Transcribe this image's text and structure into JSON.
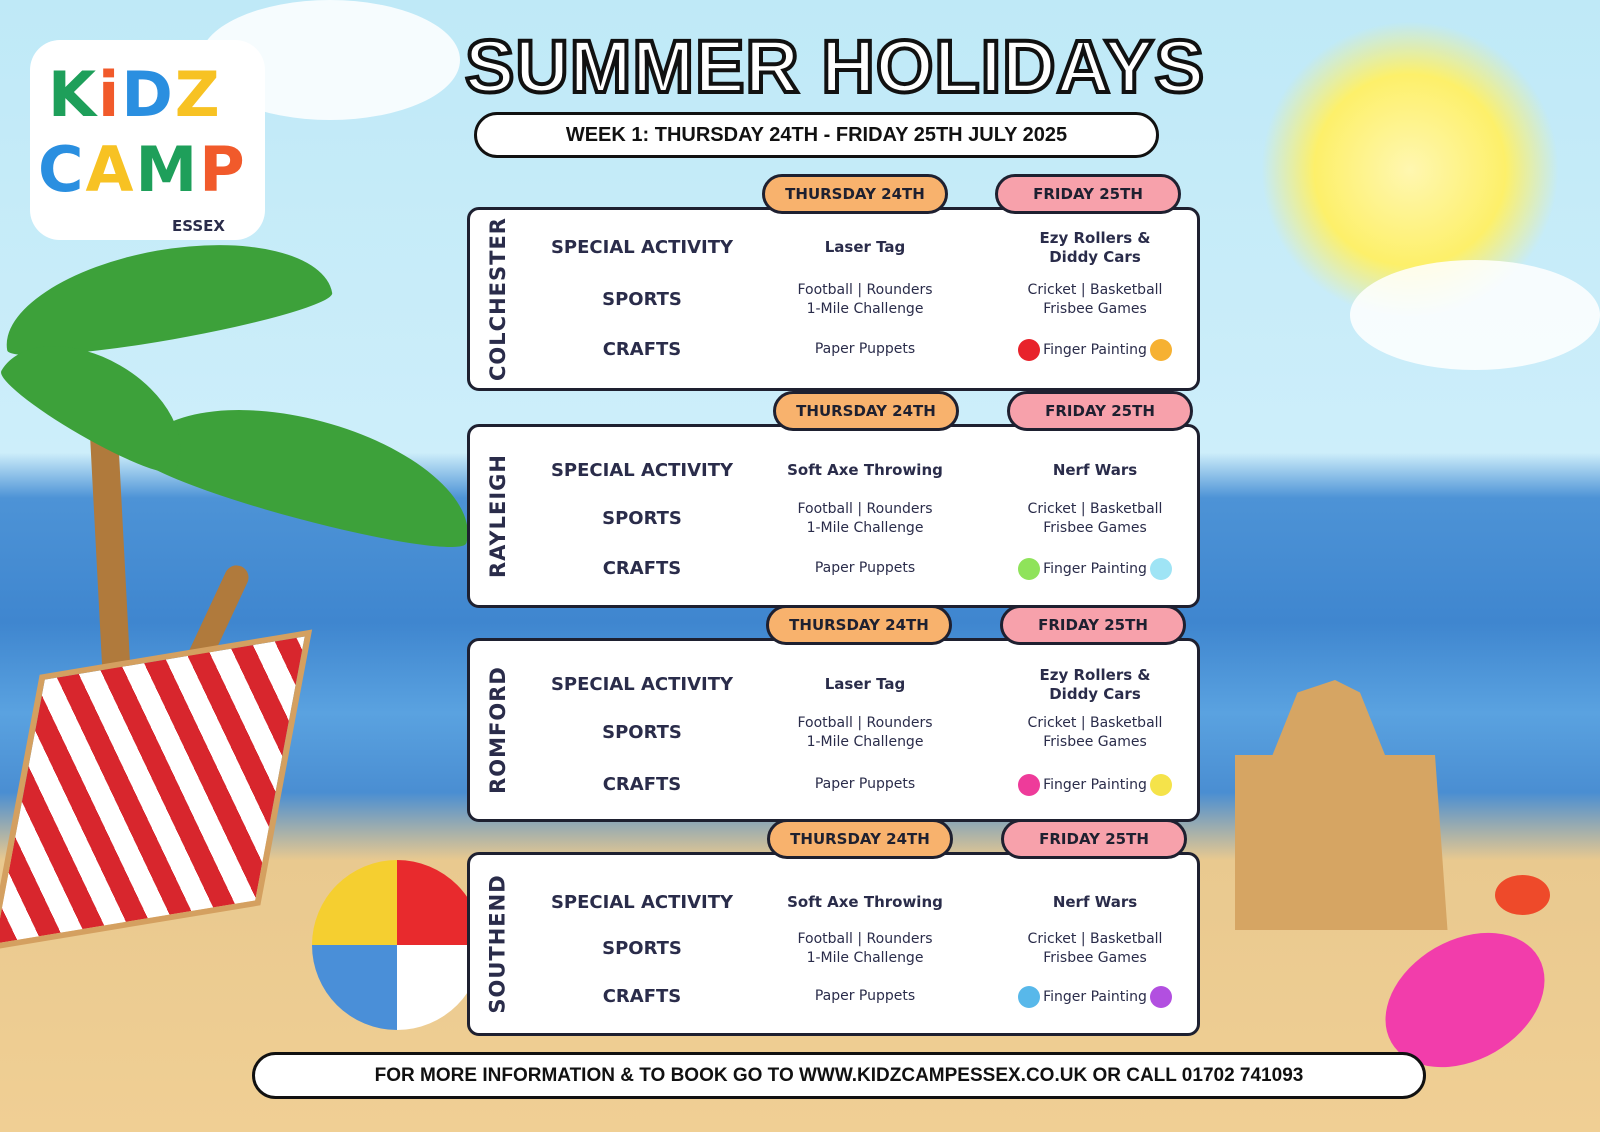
{
  "logo": {
    "line1": "KiDZ",
    "line2": "CAMP",
    "tagline": "ESSEX"
  },
  "title": "SUMMER HOLIDAYS",
  "subtitle": "WEEK 1: THURSDAY 24TH - FRIDAY 25TH JULY 2025",
  "row_labels": [
    "SPECIAL ACTIVITY",
    "SPORTS",
    "CRAFTS"
  ],
  "day_labels": {
    "thursday": "THURSDAY 24TH",
    "friday": "FRIDAY 25TH"
  },
  "colors": {
    "thursday_tab": "#f8b26d",
    "friday_tab": "#f7a1ab",
    "text": "#2a2c4a"
  },
  "locations": [
    {
      "name": "COLCHESTER",
      "thursday": [
        "Laser Tag",
        "Football | Rounders\n1-Mile Challenge",
        "Paper Puppets"
      ],
      "friday": [
        "Ezy Rollers &\nDiddy Cars",
        "Cricket | Basketball\nFrisbee Games",
        "Finger Painting"
      ],
      "splats": [
        "#e8222b",
        "#f6b132"
      ]
    },
    {
      "name": "RAYLEIGH",
      "thursday": [
        "Soft Axe Throwing",
        "Football | Rounders\n1-Mile Challenge",
        "Paper Puppets"
      ],
      "friday": [
        "Nerf Wars",
        "Cricket | Basketball\nFrisbee Games",
        "Finger Painting"
      ],
      "splats": [
        "#8fe35a",
        "#9fe4f5"
      ]
    },
    {
      "name": "ROMFORD",
      "thursday": [
        "Laser Tag",
        "Football | Rounders\n1-Mile Challenge",
        "Paper Puppets"
      ],
      "friday": [
        "Ezy Rollers &\nDiddy Cars",
        "Cricket | Basketball\nFrisbee Games",
        "Finger Painting"
      ],
      "splats": [
        "#ee3b9a",
        "#f5e34a"
      ]
    },
    {
      "name": "SOUTHEND",
      "thursday": [
        "Soft Axe Throwing",
        "Football | Rounders\n1-Mile Challenge",
        "Paper Puppets"
      ],
      "friday": [
        "Nerf Wars",
        "Cricket | Basketball\nFrisbee Games",
        "Finger Painting"
      ],
      "splats": [
        "#58b8ea",
        "#b24fe0"
      ]
    }
  ],
  "footer": "FOR MORE INFORMATION & TO BOOK GO TO WWW.KIDZCAMPESSEX.CO.UK OR CALL 01702 741093"
}
